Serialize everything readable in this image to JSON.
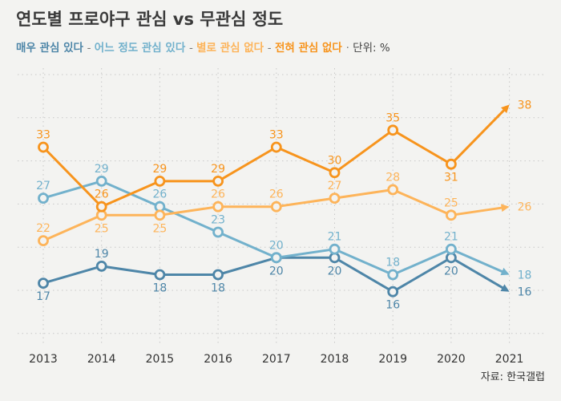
{
  "chart_data": {
    "type": "line",
    "title": "연도별 프로야구 관심 vs 무관심 정도",
    "unit_label": "단위: %",
    "source": "자료: 한국갤럽",
    "categories": [
      "2013",
      "2014",
      "2015",
      "2016",
      "2017",
      "2018",
      "2019",
      "2020",
      "2021"
    ],
    "ylim": [
      0,
      42
    ],
    "grid": true,
    "series": [
      {
        "name": "매우 관심 있다",
        "color": "#4e86a8",
        "values": [
          17,
          19,
          18,
          18,
          20,
          20,
          16,
          20,
          16
        ]
      },
      {
        "name": "어느 정도 관심 있다",
        "color": "#72b1cc",
        "values": [
          27,
          29,
          26,
          23,
          20,
          21,
          18,
          21,
          18
        ]
      },
      {
        "name": "별로 관심 없다",
        "color": "#fdb45a",
        "values": [
          22,
          25,
          25,
          26,
          26,
          27,
          28,
          25,
          26
        ]
      },
      {
        "name": "전혀 관심 없다",
        "color": "#f7941d",
        "values": [
          33,
          26,
          29,
          29,
          33,
          30,
          35,
          31,
          38
        ]
      }
    ]
  }
}
